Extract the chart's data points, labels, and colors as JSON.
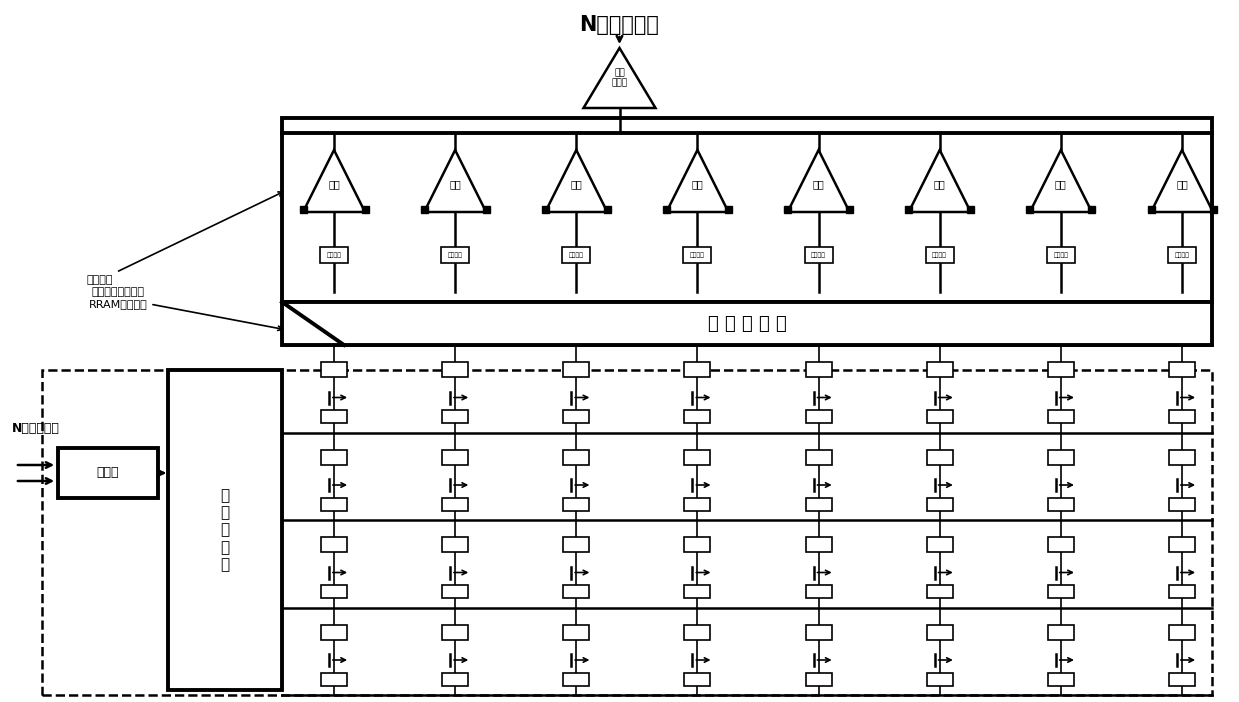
{
  "title": "N位输出数据",
  "bg_color": "#ffffff",
  "n_amps": 8,
  "n_rows": 4,
  "n_cols": 8,
  "amp_label": "运放",
  "resistor_label": "基准电阻",
  "mux_label": "时 分 复 用 器",
  "adc_label": "模数\n转换器",
  "scheduler_label": "时\n序\n调\n度\n器",
  "adder_label": "加法器",
  "input_label": "N位输入数据",
  "annotation_axon": "轴突模块",
  "annotation_array": "多位并行的二进制\nRRAM突触阵列"
}
